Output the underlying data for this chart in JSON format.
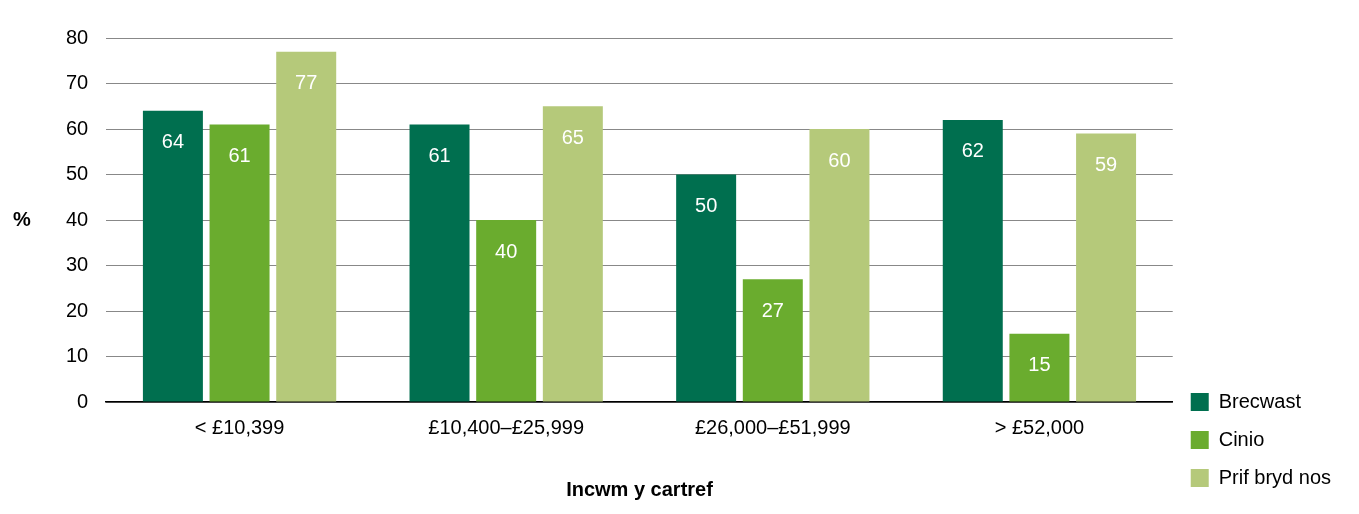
{
  "chart_data": {
    "type": "bar",
    "xlabel": "Incwm y cartref",
    "ylabel": "%",
    "categories": [
      "< £10,399",
      "£10,400–£25,999",
      "£26,000–£51,999",
      "> £52,000"
    ],
    "series": [
      {
        "name": "Brecwast",
        "color": "#006f4f",
        "values": [
          64,
          61,
          50,
          62
        ]
      },
      {
        "name": "Cinio",
        "color": "#6aac2e",
        "values": [
          61,
          40,
          27,
          15
        ]
      },
      {
        "name": "Prif bryd nos",
        "color": "#b5c97a",
        "values": [
          77,
          65,
          60,
          59
        ]
      }
    ],
    "ylim": [
      0,
      80
    ],
    "yticks": [
      0,
      10,
      20,
      30,
      40,
      50,
      60,
      70,
      80
    ],
    "grid": "y",
    "legend": "right",
    "data_labels": true
  }
}
